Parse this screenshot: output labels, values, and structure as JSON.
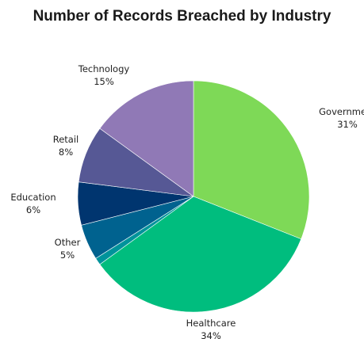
{
  "chart_data": {
    "type": "pie",
    "title": "Number of Records Breached by Industry",
    "slices": [
      {
        "label": "Government",
        "pct_label": "31%",
        "value": 31,
        "color": "#7ed957"
      },
      {
        "label": "Healthcare",
        "pct_label": "34%",
        "value": 34,
        "color": "#00bd7e"
      },
      {
        "label": "",
        "pct_label": "",
        "value": 1,
        "color": "#00939b"
      },
      {
        "label": "Other",
        "pct_label": "5%",
        "value": 5,
        "color": "#00628f"
      },
      {
        "label": "Education",
        "pct_label": "6%",
        "value": 6,
        "color": "#00356f"
      },
      {
        "label": "Retail",
        "pct_label": "8%",
        "value": 8,
        "color": "#565895"
      },
      {
        "label": "Technology",
        "pct_label": "15%",
        "value": 15,
        "color": "#9079b6"
      }
    ]
  }
}
